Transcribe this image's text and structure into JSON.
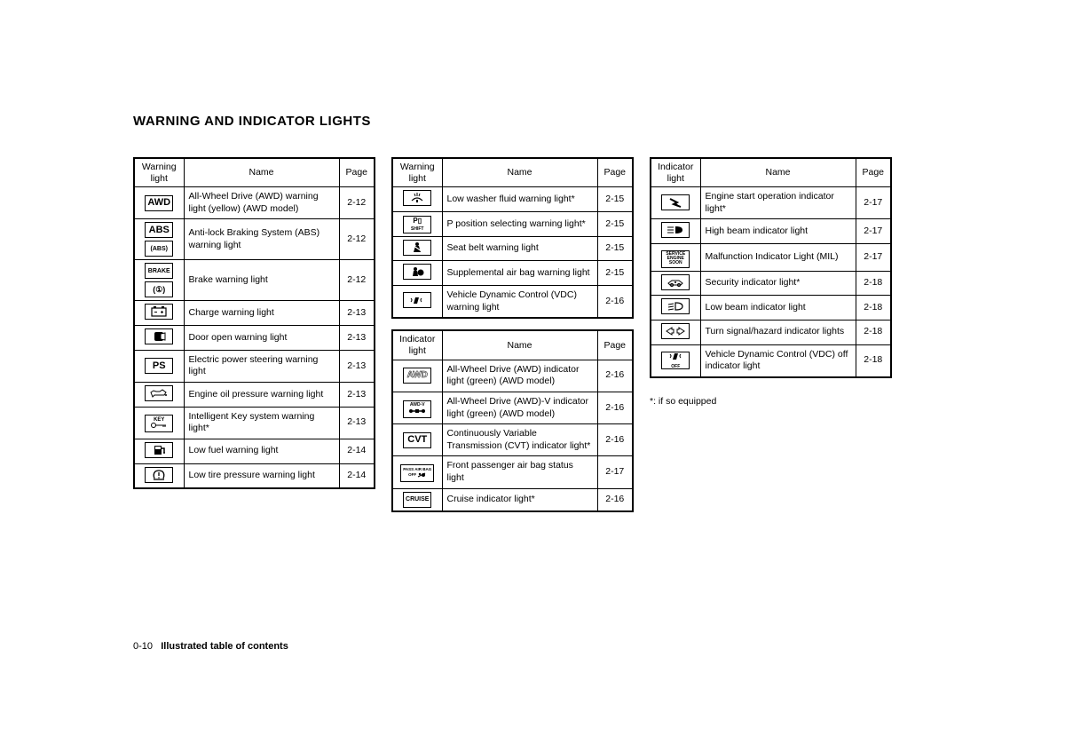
{
  "title": "WARNING AND INDICATOR LIGHTS",
  "footnote": "*: if so equipped",
  "footer_page": "0-10",
  "footer_text": "Illustrated table of contents",
  "headers": {
    "warning": "Warning light",
    "indicator": "Indicator light",
    "name": "Name",
    "page": "Page"
  },
  "table1": {
    "rows": [
      {
        "icon_text": "AWD",
        "icon_type": "text",
        "name": "All-Wheel Drive (AWD) warning light (yellow) (AWD model)",
        "page": "2-12"
      },
      {
        "icon_text": "ABS",
        "icon_type": "abs",
        "name": "Anti-lock Braking System (ABS) warning light",
        "page": "2-12"
      },
      {
        "icon_text": "BRAKE",
        "icon_type": "brake",
        "name": "Brake warning light",
        "page": "2-12"
      },
      {
        "icon_text": "",
        "icon_type": "battery",
        "name": "Charge warning light",
        "page": "2-13"
      },
      {
        "icon_text": "",
        "icon_type": "door",
        "name": "Door open warning light",
        "page": "2-13"
      },
      {
        "icon_text": "PS",
        "icon_type": "text",
        "name": "Electric power steering warning light",
        "page": "2-13"
      },
      {
        "icon_text": "",
        "icon_type": "oil",
        "name": "Engine oil pressure warning light",
        "page": "2-13"
      },
      {
        "icon_text": "KEY",
        "icon_type": "key",
        "name": "Intelligent Key system warning light*",
        "page": "2-13"
      },
      {
        "icon_text": "",
        "icon_type": "fuel",
        "name": "Low fuel warning light",
        "page": "2-14"
      },
      {
        "icon_text": "(!)",
        "icon_type": "tire",
        "name": "Low tire pressure warning light",
        "page": "2-14"
      }
    ]
  },
  "table2": {
    "rows": [
      {
        "icon_text": "",
        "icon_type": "washer",
        "name": "Low washer fluid warning light*",
        "page": "2-15"
      },
      {
        "icon_text": "P",
        "icon_type": "pshift",
        "name": "P position selecting warning light*",
        "page": "2-15"
      },
      {
        "icon_text": "",
        "icon_type": "seatbelt",
        "name": "Seat belt warning light",
        "page": "2-15"
      },
      {
        "icon_text": "",
        "icon_type": "airbag",
        "name": "Supplemental air bag warning light",
        "page": "2-15"
      },
      {
        "icon_text": "",
        "icon_type": "vdc",
        "name": "Vehicle Dynamic Control (VDC) warning light",
        "page": "2-16"
      }
    ]
  },
  "table3": {
    "rows": [
      {
        "icon_text": "AWD",
        "icon_type": "text-hollow",
        "name": "All-Wheel Drive (AWD) indicator light (green) (AWD model)",
        "page": "2-16"
      },
      {
        "icon_text": "AWD-V",
        "icon_type": "awdv",
        "name": "All-Wheel Drive (AWD)-V indicator light (green) (AWD model)",
        "page": "2-16"
      },
      {
        "icon_text": "CVT",
        "icon_type": "text",
        "name": "Continuously Variable Transmission (CVT) indicator light*",
        "page": "2-16"
      },
      {
        "icon_text": "PASS AIR BAG OFF",
        "icon_type": "passairbag",
        "name": "Front passenger air bag status light",
        "page": "2-17"
      },
      {
        "icon_text": "CRUISE",
        "icon_type": "text-small",
        "name": "Cruise indicator light*",
        "page": "2-16"
      }
    ]
  },
  "table4": {
    "rows": [
      {
        "icon_text": "",
        "icon_type": "engine-start",
        "name": "Engine start operation indicator light*",
        "page": "2-17"
      },
      {
        "icon_text": "",
        "icon_type": "highbeam",
        "name": "High beam indicator light",
        "page": "2-17"
      },
      {
        "icon_text": "SERVICE ENGINE SOON",
        "icon_type": "mil",
        "name": "Malfunction Indicator Light (MIL)",
        "page": "2-17"
      },
      {
        "icon_text": "",
        "icon_type": "security",
        "name": "Security indicator light*",
        "page": "2-18"
      },
      {
        "icon_text": "",
        "icon_type": "lowbeam",
        "name": "Low beam indicator light",
        "page": "2-18"
      },
      {
        "icon_text": "",
        "icon_type": "turn",
        "name": "Turn signal/hazard indicator lights",
        "page": "2-18"
      },
      {
        "icon_text": "OFF",
        "icon_type": "vdcoff",
        "name": "Vehicle Dynamic Control (VDC) off indicator light",
        "page": "2-18"
      }
    ]
  }
}
